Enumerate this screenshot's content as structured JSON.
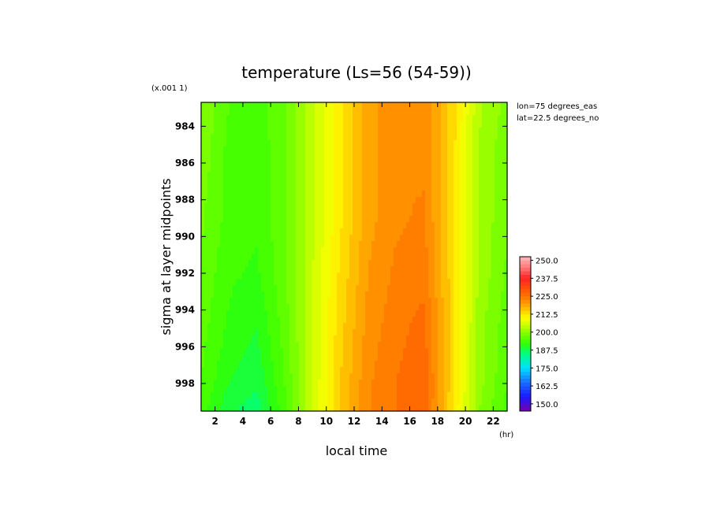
{
  "chart_data": {
    "type": "heatmap",
    "title": "temperature (Ls=56 (54-59))",
    "xlabel": "local time",
    "x_unit": "(hr)",
    "ylabel": "sigma at layer midpoints",
    "y_scale_note": "(x.001 1)",
    "annotations": [
      "lon=75 degrees_eas",
      "lat=22.5 degrees_no"
    ],
    "xlim": [
      1,
      23
    ],
    "ylim": [
      999.5,
      982.7
    ],
    "x_ticks": [
      2,
      4,
      6,
      8,
      10,
      12,
      14,
      16,
      18,
      20,
      22
    ],
    "y_ticks": [
      984,
      986,
      988,
      990,
      992,
      994,
      996,
      998
    ],
    "x": [
      1,
      3,
      5,
      7,
      9,
      11,
      13,
      15,
      17,
      19,
      21,
      23
    ],
    "y": [
      983,
      986,
      989,
      992,
      995,
      998,
      999.5
    ],
    "z": [
      [
        200,
        195,
        194,
        197,
        204,
        212,
        219,
        222,
        222,
        214,
        203,
        199
      ],
      [
        199,
        194,
        193,
        197,
        204,
        212,
        219,
        222,
        222,
        214,
        202,
        198
      ],
      [
        198,
        194,
        193,
        197,
        204,
        212,
        219,
        222,
        223,
        214,
        202,
        198
      ],
      [
        197,
        193,
        192,
        197,
        205,
        213,
        220,
        223,
        224,
        214,
        202,
        197
      ],
      [
        196,
        192,
        190,
        196,
        205,
        214,
        221,
        224,
        226,
        214,
        201,
        196
      ],
      [
        195,
        190,
        188,
        195,
        205,
        215,
        222,
        225,
        227,
        214,
        201,
        195
      ],
      [
        194,
        188,
        186,
        194,
        205,
        215,
        222,
        225,
        227,
        213,
        200,
        194
      ]
    ],
    "colorbar": {
      "labels": [
        "250.0",
        "237.5",
        "225.0",
        "212.5",
        "200.0",
        "187.5",
        "175.0",
        "162.5",
        "150.0"
      ],
      "min": 145,
      "max": 252.5,
      "step": 2.5,
      "stops": [
        [
          145,
          "#7a00a8"
        ],
        [
          155,
          "#1a1aff"
        ],
        [
          165,
          "#1a6cff"
        ],
        [
          175,
          "#00e0ff"
        ],
        [
          185,
          "#00ff80"
        ],
        [
          192,
          "#33ff00"
        ],
        [
          200,
          "#88ff00"
        ],
        [
          205,
          "#ccff00"
        ],
        [
          210,
          "#ffff00"
        ],
        [
          215,
          "#ffcc00"
        ],
        [
          220,
          "#ff9900"
        ],
        [
          227,
          "#ff6600"
        ],
        [
          237.5,
          "#ff2222"
        ],
        [
          245,
          "#ff7777"
        ],
        [
          252.5,
          "#ffb8b8"
        ]
      ]
    }
  }
}
